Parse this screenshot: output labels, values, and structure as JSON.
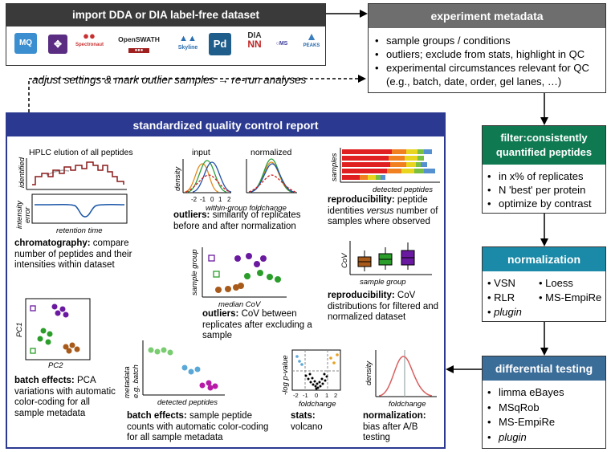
{
  "import_box": {
    "title": "import DDA or DIA label-free dataset",
    "logos": [
      "MQ",
      "OpenSWATH",
      "Skyline",
      "Pd",
      "DIA",
      "NN",
      "PEAKS",
      "Spectronaut"
    ]
  },
  "metadata_box": {
    "title": "experiment metadata",
    "items": [
      "sample groups / conditions",
      "outliers; exclude from stats, highlight in QC",
      "experimental circumstances relevant for QC",
      "(e.g., batch, date, order, gel lanes, …)"
    ]
  },
  "feedback_label": "adjust settings & mark outlier samples → re-run analyses",
  "filter_box": {
    "title_line1": "filter:consistently",
    "title_line2": "quantified peptides",
    "items": [
      "in x% of replicates",
      "N 'best' per protein",
      "optimize by contrast"
    ]
  },
  "normalization_box": {
    "title": "normalization",
    "items": [
      "VSN",
      "Loess",
      "RLR",
      "MS-EmpiRe",
      "plugin"
    ]
  },
  "diff_box": {
    "title": "differential testing",
    "items": [
      "limma eBayes",
      "MSqRob",
      "MS-EmpiRe",
      "plugin"
    ]
  },
  "qc_report": {
    "title": "standardized quality control report",
    "chromatography": {
      "plot_title": "HPLC elution of all peptides",
      "ylabel_top": "identified",
      "ylabel_bottom1": "intensity",
      "ylabel_bottom2": "error",
      "xlabel": "retention time",
      "caption_bold": "chromatography:",
      "caption_rest": " compare number of peptides and their intensities within dataset"
    },
    "outliers_norm": {
      "label_input": "input",
      "label_normalized": "normalized",
      "ylabel": "density",
      "ticks": [
        "-2",
        "-1",
        "0",
        "1",
        "2"
      ],
      "xlabel": "within-group foldchange",
      "caption_bold": "outliers:",
      "caption_rest": " similarity of replicates before and after normalization"
    },
    "reproducibility_pep": {
      "ylabel": "samples",
      "xlabel": "detected peptides",
      "caption_bold": "reproducibility:",
      "caption_rest1": " peptide identities ",
      "caption_ital": "versus",
      "caption_rest2": " number of samples where observed"
    },
    "outliers_cov": {
      "ylabel": "sample group",
      "xlabel": "median CoV",
      "caption_bold": "outliers:",
      "caption_rest": " CoV between replicates after excluding a sample"
    },
    "reproducibility_cov": {
      "ylabel": "CoV",
      "xlabel": "sample group",
      "caption_bold": "reproducibility:",
      "caption_rest": " CoV distributions for filtered and normalized dataset"
    },
    "batch_pca": {
      "ylabel": "PC1",
      "xlabel": "PC2",
      "caption_bold": "batch effects:",
      "caption_rest": " PCA variations with automatic color-coding for all sample metadata"
    },
    "batch_counts": {
      "ylabel1": "metadata",
      "ylabel2": "e.g. batch",
      "xlabel": "detected peptides",
      "caption_bold": "batch effects:",
      "caption_rest": " sample peptide counts with automatic color-coding for all sample metadata"
    },
    "stats": {
      "ylabel": "-log p-value",
      "ticks": [
        "-2",
        "-1",
        "0",
        "1",
        "2"
      ],
      "xlabel": "foldchange",
      "caption_bold": "stats:",
      "caption_rest": " volcano"
    },
    "norm_bias": {
      "ylabel": "density",
      "xlabel": "foldchange",
      "caption_bold": "normalization:",
      "caption_rest": " bias after A/B testing"
    }
  },
  "colors": {
    "import_header": "#3a3a3a",
    "metadata_header": "#6e6e6e",
    "qc_header": "#2b3990",
    "filter_header": "#0f7a52",
    "normalization_header": "#1b8aa8",
    "diff_header": "#3b6d99"
  }
}
